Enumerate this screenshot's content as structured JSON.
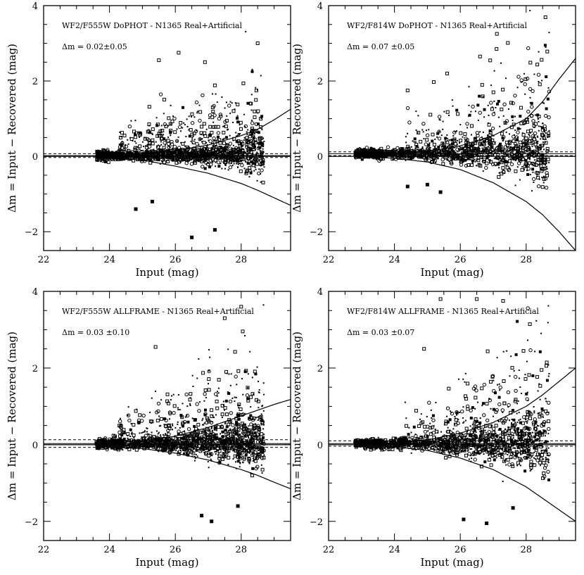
{
  "figure_title": "",
  "chart_data": [
    {
      "type": "scatter",
      "title": "WF2/F555W DoPHOT - N1365 Real+Artificial",
      "annotation": "Δm = 0.02±0.05",
      "xlabel": "Input (mag)",
      "ylabel": "Δm = Input − Recovered (mag)",
      "xlim": [
        22,
        29.5
      ],
      "ylim": [
        -2.5,
        4
      ],
      "xticks": [
        22,
        24,
        26,
        28
      ],
      "yticks": [
        -2,
        0,
        2,
        4
      ],
      "xtick_labels": [
        "22",
        "24",
        "26",
        "28"
      ],
      "ytick_labels": [
        "−2",
        "0",
        "2",
        "4"
      ],
      "offset": 0.02,
      "offset_error": 0.05,
      "start_mag": 23.6,
      "envelope_upper": [
        [
          23.6,
          0.0
        ],
        [
          25.0,
          0.06
        ],
        [
          26.0,
          0.15
        ],
        [
          27.0,
          0.3
        ],
        [
          28.0,
          0.55
        ],
        [
          28.5,
          0.72
        ],
        [
          29.0,
          0.97
        ],
        [
          29.5,
          1.25
        ]
      ],
      "envelope_lower": [
        [
          23.6,
          0.0
        ],
        [
          25.0,
          -0.1
        ],
        [
          26.0,
          -0.26
        ],
        [
          27.0,
          -0.45
        ],
        [
          28.0,
          -0.72
        ],
        [
          28.5,
          -0.9
        ],
        [
          29.0,
          -1.1
        ],
        [
          29.5,
          -1.3
        ]
      ],
      "points_description": "roughly 1700 recovered stars, scatter increasing toward fainter magnitudes",
      "n_points": 1700,
      "outliers": [
        [
          25.5,
          2.55
        ],
        [
          26.1,
          2.75
        ],
        [
          26.9,
          2.5
        ],
        [
          28.5,
          3.0
        ],
        [
          24.8,
          -1.4
        ],
        [
          26.5,
          -2.15
        ],
        [
          27.2,
          -1.95
        ],
        [
          25.3,
          -1.2
        ]
      ]
    },
    {
      "type": "scatter",
      "title": "WF2/F814W DoPHOT - N1365 Real+Artificial",
      "annotation": "Δm = 0.07 ±0.05",
      "xlabel": "Input (mag)",
      "ylabel": "Δm = Input − Recovered (mag)",
      "xlim": [
        22,
        29.5
      ],
      "ylim": [
        -2.5,
        4
      ],
      "xticks": [
        22,
        24,
        26,
        28
      ],
      "yticks": [
        -2,
        0,
        2,
        4
      ],
      "xtick_labels": [
        "22",
        "24",
        "26",
        "28"
      ],
      "ytick_labels": [
        "−2",
        "0",
        "2",
        "4"
      ],
      "offset": 0.07,
      "offset_error": 0.05,
      "start_mag": 22.8,
      "envelope_upper": [
        [
          22.8,
          0.0
        ],
        [
          24.0,
          0.05
        ],
        [
          25.0,
          0.12
        ],
        [
          26.0,
          0.28
        ],
        [
          27.0,
          0.55
        ],
        [
          28.0,
          1.0
        ],
        [
          28.5,
          1.45
        ],
        [
          29.0,
          2.05
        ],
        [
          29.5,
          2.6
        ]
      ],
      "envelope_lower": [
        [
          22.8,
          0.0
        ],
        [
          24.0,
          -0.05
        ],
        [
          25.0,
          -0.15
        ],
        [
          26.0,
          -0.35
        ],
        [
          27.0,
          -0.7
        ],
        [
          28.0,
          -1.2
        ],
        [
          28.5,
          -1.55
        ],
        [
          29.0,
          -2.0
        ],
        [
          29.5,
          -2.5
        ]
      ],
      "points_description": "roughly 1600 recovered stars, scatter increasing toward fainter magnitudes",
      "n_points": 1600,
      "outliers": [
        [
          24.4,
          1.75
        ],
        [
          26.6,
          2.65
        ],
        [
          27.1,
          2.85
        ],
        [
          25.6,
          2.2
        ],
        [
          24.4,
          -0.8
        ],
        [
          25.0,
          -0.75
        ],
        [
          25.4,
          -0.95
        ]
      ]
    },
    {
      "type": "scatter",
      "title": "WF2/F555W ALLFRAME - N1365 Real+Artificial",
      "annotation": "Δm = 0.03 ±0.10",
      "xlabel": "Input (mag)",
      "ylabel": "Δm = Input − Recovered (mag)",
      "xlim": [
        22,
        29.5
      ],
      "ylim": [
        -2.5,
        4
      ],
      "xticks": [
        22,
        24,
        26,
        28
      ],
      "yticks": [
        -2,
        0,
        2,
        4
      ],
      "xtick_labels": [
        "22",
        "24",
        "26",
        "28"
      ],
      "ytick_labels": [
        "−2",
        "0",
        "2",
        "4"
      ],
      "offset": 0.03,
      "offset_error": 0.1,
      "start_mag": 23.6,
      "envelope_upper": [
        [
          23.6,
          0.02
        ],
        [
          25.0,
          0.1
        ],
        [
          26.0,
          0.22
        ],
        [
          27.0,
          0.45
        ],
        [
          28.0,
          0.75
        ],
        [
          28.5,
          0.9
        ],
        [
          29.0,
          1.05
        ],
        [
          29.5,
          1.18
        ]
      ],
      "envelope_lower": [
        [
          23.6,
          -0.02
        ],
        [
          25.0,
          -0.1
        ],
        [
          26.0,
          -0.22
        ],
        [
          27.0,
          -0.4
        ],
        [
          28.0,
          -0.65
        ],
        [
          28.5,
          -0.8
        ],
        [
          29.0,
          -0.98
        ],
        [
          29.5,
          -1.15
        ]
      ],
      "points_description": "roughly 1800 recovered stars, scatter increasing toward fainter magnitudes",
      "n_points": 1800,
      "outliers": [
        [
          28.0,
          3.6
        ],
        [
          27.5,
          3.3
        ],
        [
          25.4,
          2.55
        ],
        [
          27.1,
          -2.0
        ],
        [
          27.9,
          -1.6
        ],
        [
          26.8,
          -1.85
        ]
      ]
    },
    {
      "type": "scatter",
      "title": "WF2/F814W ALLFRAME - N1365 Real+Artificial",
      "annotation": "Δm = 0.03 ±0.07",
      "xlabel": "Input (mag)",
      "ylabel": "Δm = Input − Recovered (mag)",
      "xlim": [
        22,
        29.5
      ],
      "ylim": [
        -2.5,
        4
      ],
      "xticks": [
        22,
        24,
        26,
        28
      ],
      "yticks": [
        -2,
        0,
        2,
        4
      ],
      "xtick_labels": [
        "22",
        "24",
        "26",
        "28"
      ],
      "ytick_labels": [
        "−2",
        "0",
        "2",
        "4"
      ],
      "offset": 0.03,
      "offset_error": 0.07,
      "start_mag": 22.8,
      "envelope_upper": [
        [
          22.8,
          0.0
        ],
        [
          24.0,
          0.05
        ],
        [
          25.0,
          0.12
        ],
        [
          26.0,
          0.3
        ],
        [
          27.0,
          0.58
        ],
        [
          28.0,
          1.0
        ],
        [
          28.5,
          1.3
        ],
        [
          29.0,
          1.65
        ],
        [
          29.5,
          2.0
        ]
      ],
      "envelope_lower": [
        [
          22.8,
          0.0
        ],
        [
          24.0,
          -0.05
        ],
        [
          25.0,
          -0.15
        ],
        [
          26.0,
          -0.35
        ],
        [
          27.0,
          -0.65
        ],
        [
          28.0,
          -1.1
        ],
        [
          28.5,
          -1.4
        ],
        [
          29.0,
          -1.7
        ],
        [
          29.5,
          -2.0
        ]
      ],
      "points_description": "roughly 1700 recovered stars, scatter increasing toward fainter magnitudes",
      "n_points": 1700,
      "outliers": [
        [
          25.4,
          3.8
        ],
        [
          26.5,
          3.8
        ],
        [
          27.3,
          3.75
        ],
        [
          24.9,
          2.5
        ],
        [
          26.8,
          -2.05
        ],
        [
          27.6,
          -1.65
        ],
        [
          26.1,
          -1.95
        ]
      ]
    }
  ]
}
